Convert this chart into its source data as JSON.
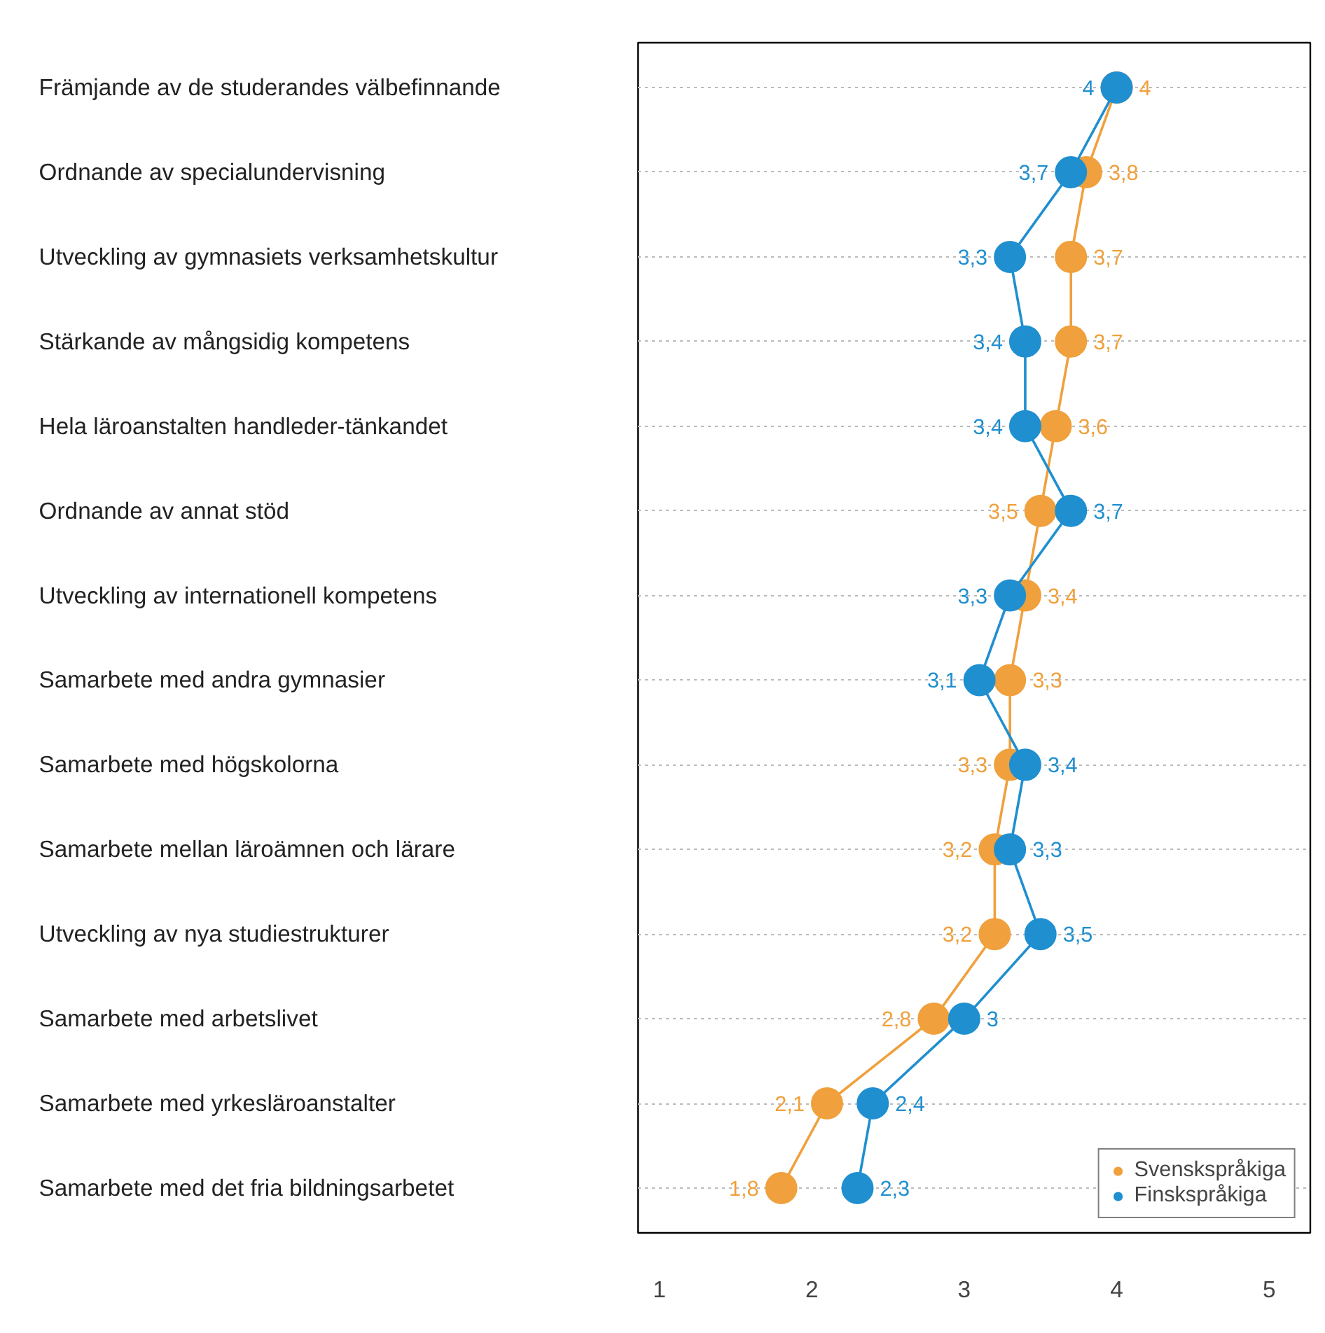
{
  "chart_data": {
    "type": "line",
    "categories": [
      "Främjande av de studerandes välbefinnande",
      "Ordnande av specialundervisning",
      "Utveckling av gymnasiets verksamhetskultur",
      "Stärkande av mångsidig kompetens",
      "Hela läroanstalten handleder-tänkandet",
      "Ordnande av annat stöd",
      "Utveckling av internationell kompetens",
      "Samarbete med andra gymnasier",
      "Samarbete med högskolorna",
      "Samarbete mellan läroämnen och lärare",
      "Utveckling av nya studiestrukturer",
      "Samarbete med arbetslivet",
      "Samarbete med yrkesläroanstalter",
      "Samarbete med det fria bildningsarbetet"
    ],
    "orientation": "horizontal",
    "series": [
      {
        "name": "Svenskspråkiga",
        "color": "#f0a03c",
        "values": [
          4,
          3.8,
          3.7,
          3.7,
          3.6,
          3.5,
          3.4,
          3.3,
          3.3,
          3.2,
          3.2,
          2.8,
          2.1,
          1.8
        ],
        "value_labels": [
          "4",
          "3,8",
          "3,7",
          "3,7",
          "3,6",
          "3,5",
          "3,4",
          "3,3",
          "3,3",
          "3,2",
          "3,2",
          "2,8",
          "2,1",
          "1,8"
        ]
      },
      {
        "name": "Finskspråkiga",
        "color": "#1f8fd0",
        "values": [
          4,
          3.7,
          3.3,
          3.4,
          3.4,
          3.7,
          3.3,
          3.1,
          3.4,
          3.3,
          3.5,
          3,
          2.4,
          2.3
        ],
        "value_labels": [
          "4",
          "3,7",
          "3,3",
          "3,4",
          "3,4",
          "3,7",
          "3,3",
          "3,1",
          "3,4",
          "3,3",
          "3,5",
          "3",
          "2,4",
          "2,3"
        ]
      }
    ],
    "xlim": [
      0.86,
      5.27
    ],
    "xticks": [
      1,
      2,
      3,
      4,
      5
    ],
    "grid": "y",
    "legend": "bottom right",
    "marker": "circle",
    "line_style": "solid"
  }
}
